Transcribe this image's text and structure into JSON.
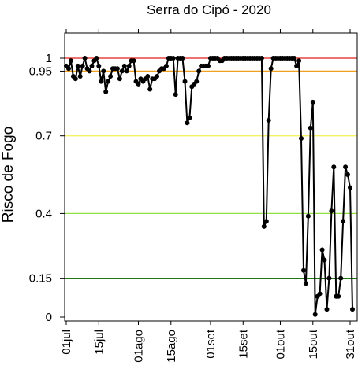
{
  "chart_data": {
    "type": "line",
    "title": "Serra do Cipó - 2020",
    "ylabel": "Risco de Fogo",
    "xlabel": "",
    "ylim": [
      0,
      1
    ],
    "grid": false,
    "x_ticks": [
      {
        "label": "01jul",
        "date": "2020-07-01"
      },
      {
        "label": "15jul",
        "date": "2020-07-15"
      },
      {
        "label": "01ago",
        "date": "2020-08-01"
      },
      {
        "label": "15ago",
        "date": "2020-08-15"
      },
      {
        "label": "01set",
        "date": "2020-09-01"
      },
      {
        "label": "15set",
        "date": "2020-09-15"
      },
      {
        "label": "01out",
        "date": "2020-10-01"
      },
      {
        "label": "15out",
        "date": "2020-10-15"
      },
      {
        "label": "31out",
        "date": "2020-10-31"
      }
    ],
    "y_ticks": [
      {
        "label": "0",
        "value": 0
      },
      {
        "label": "0.15",
        "value": 0.15
      },
      {
        "label": "0.4",
        "value": 0.4
      },
      {
        "label": "0.7",
        "value": 0.7
      },
      {
        "label": "0.95",
        "value": 0.95
      },
      {
        "label": "1",
        "value": 1
      }
    ],
    "thresholds": [
      {
        "value": 1.0,
        "color": "#e0201b"
      },
      {
        "value": 0.95,
        "color": "#f0a020"
      },
      {
        "value": 0.7,
        "color": "#f5f064"
      },
      {
        "value": 0.4,
        "color": "#90e040"
      },
      {
        "value": 0.15,
        "color": "#1e7a10"
      }
    ],
    "series": [
      {
        "color": "#000000",
        "points": [
          [
            "2020-07-01",
            0.97
          ],
          [
            "2020-07-02",
            0.96
          ],
          [
            "2020-07-03",
            0.99
          ],
          [
            "2020-07-04",
            0.93
          ],
          [
            "2020-07-05",
            0.92
          ],
          [
            "2020-07-06",
            0.97
          ],
          [
            "2020-07-07",
            0.93
          ],
          [
            "2020-07-08",
            0.97
          ],
          [
            "2020-07-09",
            1.0
          ],
          [
            "2020-07-10",
            0.96
          ],
          [
            "2020-07-11",
            0.95
          ],
          [
            "2020-07-12",
            0.97
          ],
          [
            "2020-07-13",
            0.99
          ],
          [
            "2020-07-14",
            1.0
          ],
          [
            "2020-07-15",
            0.97
          ],
          [
            "2020-07-16",
            0.91
          ],
          [
            "2020-07-17",
            0.95
          ],
          [
            "2020-07-18",
            0.87
          ],
          [
            "2020-07-19",
            0.91
          ],
          [
            "2020-07-20",
            0.93
          ],
          [
            "2020-07-21",
            0.96
          ],
          [
            "2020-07-22",
            0.96
          ],
          [
            "2020-07-23",
            0.96
          ],
          [
            "2020-07-24",
            0.92
          ],
          [
            "2020-07-25",
            0.95
          ],
          [
            "2020-07-26",
            0.97
          ],
          [
            "2020-07-27",
            0.95
          ],
          [
            "2020-07-28",
            0.97
          ],
          [
            "2020-07-29",
            0.99
          ],
          [
            "2020-07-30",
            0.99
          ],
          [
            "2020-07-31",
            0.91
          ],
          [
            "2020-08-01",
            0.9
          ],
          [
            "2020-08-02",
            0.92
          ],
          [
            "2020-08-03",
            0.91
          ],
          [
            "2020-08-04",
            0.92
          ],
          [
            "2020-08-05",
            0.93
          ],
          [
            "2020-08-06",
            0.88
          ],
          [
            "2020-08-07",
            0.92
          ],
          [
            "2020-08-08",
            0.92
          ],
          [
            "2020-08-09",
            0.93
          ],
          [
            "2020-08-10",
            0.95
          ],
          [
            "2020-08-11",
            0.96
          ],
          [
            "2020-08-12",
            0.96
          ],
          [
            "2020-08-13",
            0.97
          ],
          [
            "2020-08-14",
            1.0
          ],
          [
            "2020-08-15",
            1.0
          ],
          [
            "2020-08-16",
            1.0
          ],
          [
            "2020-08-17",
            0.86
          ],
          [
            "2020-08-18",
            1.0
          ],
          [
            "2020-08-19",
            1.0
          ],
          [
            "2020-08-20",
            1.0
          ],
          [
            "2020-08-21",
            0.91
          ],
          [
            "2020-08-22",
            0.75
          ],
          [
            "2020-08-23",
            0.77
          ],
          [
            "2020-08-24",
            0.89
          ],
          [
            "2020-08-25",
            0.9
          ],
          [
            "2020-08-26",
            0.91
          ],
          [
            "2020-08-27",
            0.95
          ],
          [
            "2020-08-28",
            0.97
          ],
          [
            "2020-08-29",
            0.97
          ],
          [
            "2020-08-30",
            0.97
          ],
          [
            "2020-08-31",
            0.97
          ],
          [
            "2020-09-01",
            1.0
          ],
          [
            "2020-09-02",
            1.0
          ],
          [
            "2020-09-03",
            1.0
          ],
          [
            "2020-09-04",
            1.0
          ],
          [
            "2020-09-05",
            0.99
          ],
          [
            "2020-09-06",
            0.99
          ],
          [
            "2020-09-07",
            1.0
          ],
          [
            "2020-09-08",
            1.0
          ],
          [
            "2020-09-09",
            1.0
          ],
          [
            "2020-09-10",
            1.0
          ],
          [
            "2020-09-11",
            1.0
          ],
          [
            "2020-09-12",
            1.0
          ],
          [
            "2020-09-13",
            1.0
          ],
          [
            "2020-09-14",
            1.0
          ],
          [
            "2020-09-15",
            1.0
          ],
          [
            "2020-09-16",
            1.0
          ],
          [
            "2020-09-17",
            1.0
          ],
          [
            "2020-09-18",
            1.0
          ],
          [
            "2020-09-19",
            1.0
          ],
          [
            "2020-09-20",
            1.0
          ],
          [
            "2020-09-21",
            1.0
          ],
          [
            "2020-09-22",
            1.0
          ],
          [
            "2020-09-23",
            1.0
          ],
          [
            "2020-09-24",
            0.35
          ],
          [
            "2020-09-25",
            0.37
          ],
          [
            "2020-09-26",
            0.76
          ],
          [
            "2020-09-27",
            0.96
          ],
          [
            "2020-09-28",
            1.0
          ],
          [
            "2020-09-29",
            1.0
          ],
          [
            "2020-09-30",
            1.0
          ],
          [
            "2020-10-01",
            1.0
          ],
          [
            "2020-10-02",
            1.0
          ],
          [
            "2020-10-03",
            1.0
          ],
          [
            "2020-10-04",
            1.0
          ],
          [
            "2020-10-05",
            1.0
          ],
          [
            "2020-10-06",
            1.0
          ],
          [
            "2020-10-07",
            1.0
          ],
          [
            "2020-10-08",
            0.97
          ],
          [
            "2020-10-09",
            0.99
          ],
          [
            "2020-10-10",
            0.69
          ],
          [
            "2020-10-11",
            0.18
          ],
          [
            "2020-10-12",
            0.13
          ],
          [
            "2020-10-13",
            0.39
          ],
          [
            "2020-10-14",
            0.73
          ],
          [
            "2020-10-15",
            0.83
          ],
          [
            "2020-10-16",
            0.01
          ],
          [
            "2020-10-17",
            0.08
          ],
          [
            "2020-10-18",
            0.09
          ],
          [
            "2020-10-19",
            0.26
          ],
          [
            "2020-10-20",
            0.22
          ],
          [
            "2020-10-21",
            0.03
          ],
          [
            "2020-10-22",
            0.15
          ],
          [
            "2020-10-23",
            0.41
          ],
          [
            "2020-10-24",
            0.58
          ],
          [
            "2020-10-25",
            0.08
          ],
          [
            "2020-10-26",
            0.08
          ],
          [
            "2020-10-27",
            0.15
          ],
          [
            "2020-10-28",
            0.37
          ],
          [
            "2020-10-29",
            0.58
          ],
          [
            "2020-10-30",
            0.55
          ],
          [
            "2020-10-31",
            0.5
          ],
          [
            "2020-11-01",
            0.03
          ]
        ]
      }
    ]
  }
}
